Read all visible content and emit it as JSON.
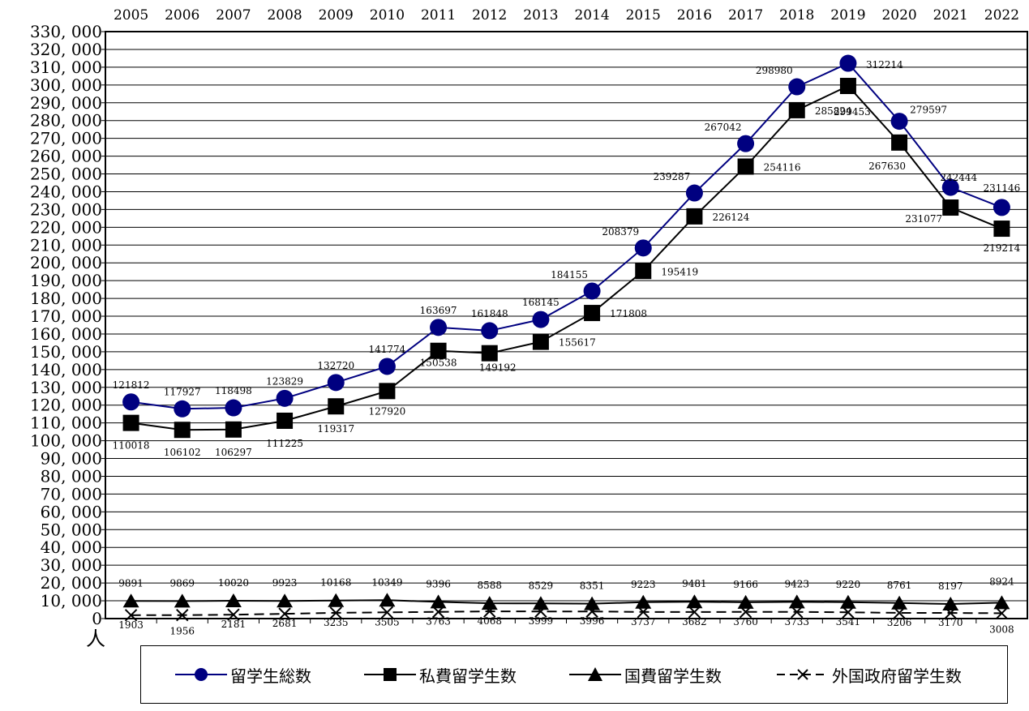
{
  "chart_data": {
    "type": "line",
    "title": "",
    "xlabel": "",
    "ylabel": "",
    "y_unit_label": "人",
    "x": [
      "2005",
      "2006",
      "2007",
      "2008",
      "2009",
      "2010",
      "2011",
      "2012",
      "2013",
      "2014",
      "2015",
      "2016",
      "2017",
      "2018",
      "2019",
      "2020",
      "2021",
      "2022"
    ],
    "ylim": [
      0,
      330000
    ],
    "yticks": [
      "0",
      "10, 000",
      "20, 000",
      "30, 000",
      "40, 000",
      "50, 000",
      "60, 000",
      "70, 000",
      "80, 000",
      "90, 000",
      "100, 000",
      "110, 000",
      "120, 000",
      "130, 000",
      "140, 000",
      "150, 000",
      "160, 000",
      "170, 000",
      "180, 000",
      "190, 000",
      "200, 000",
      "210, 000",
      "220, 000",
      "230, 000",
      "240, 000",
      "250, 000",
      "260, 000",
      "270, 000",
      "280, 000",
      "290, 000",
      "300, 000",
      "310, 000",
      "320, 000",
      "330, 000"
    ],
    "grid": true,
    "legend_position": "bottom",
    "series": [
      {
        "name": "留学生総数",
        "color": "#000080",
        "marker": "circle",
        "line": "solid",
        "values": [
          121812,
          117927,
          118498,
          123829,
          132720,
          141774,
          163697,
          161848,
          168145,
          184155,
          208379,
          239287,
          267042,
          298980,
          312214,
          279597,
          242444,
          231146
        ]
      },
      {
        "name": "私費留学生数",
        "color": "#000000",
        "marker": "square",
        "line": "solid",
        "values": [
          110018,
          106102,
          106297,
          111225,
          119317,
          127920,
          150538,
          149192,
          155617,
          171808,
          195419,
          226124,
          254116,
          285824,
          299453,
          267630,
          231077,
          219214
        ]
      },
      {
        "name": "国費留学生数",
        "color": "#000000",
        "marker": "triangle",
        "line": "solid",
        "values": [
          9891,
          9869,
          10020,
          9923,
          10168,
          10349,
          9396,
          8588,
          8529,
          8351,
          9223,
          9481,
          9166,
          9423,
          9220,
          8761,
          8197,
          8924
        ]
      },
      {
        "name": "外国政府留学生数",
        "color": "#000000",
        "marker": "x",
        "line": "dashed",
        "values": [
          1903,
          1956,
          2181,
          2681,
          3235,
          3505,
          3763,
          4068,
          3999,
          3996,
          3737,
          3682,
          3760,
          3733,
          3541,
          3206,
          3170,
          3008
        ]
      }
    ]
  }
}
